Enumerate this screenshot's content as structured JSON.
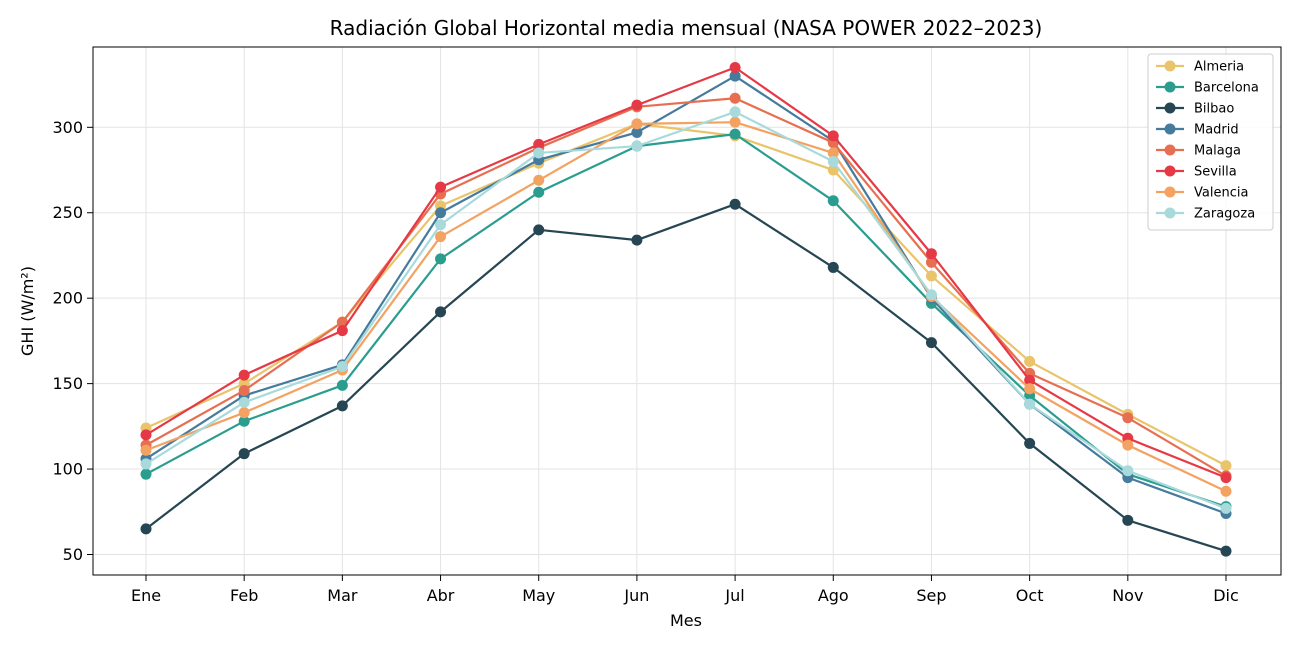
{
  "chart_data": {
    "type": "line",
    "title": "Radiación Global Horizontal media mensual (NASA POWER 2022–2023)",
    "xlabel": "Mes",
    "ylabel": "GHI (W/m²)",
    "categories": [
      "Ene",
      "Feb",
      "Mar",
      "Abr",
      "May",
      "Jun",
      "Jul",
      "Ago",
      "Sep",
      "Oct",
      "Nov",
      "Dic"
    ],
    "ylim": [
      38,
      347
    ],
    "yticks": [
      50,
      100,
      150,
      200,
      250,
      300
    ],
    "grid": true,
    "legend_position": "top-right",
    "series": [
      {
        "name": "Almeria",
        "color": "#e9c46a",
        "values": [
          124,
          150,
          186,
          254,
          279,
          302,
          295,
          275,
          213,
          163,
          132,
          102
        ]
      },
      {
        "name": "Barcelona",
        "color": "#2a9d8f",
        "values": [
          97,
          128,
          149,
          223,
          262,
          289,
          296,
          257,
          197,
          143,
          97,
          78
        ]
      },
      {
        "name": "Bilbao",
        "color": "#264653",
        "values": [
          65,
          109,
          137,
          192,
          240,
          234,
          255,
          218,
          174,
          115,
          70,
          52
        ]
      },
      {
        "name": "Madrid",
        "color": "#457b9d",
        "values": [
          106,
          143,
          161,
          250,
          281,
          297,
          330,
          292,
          200,
          138,
          95,
          74
        ]
      },
      {
        "name": "Malaga",
        "color": "#e76f51",
        "values": [
          114,
          146,
          186,
          261,
          288,
          312,
          317,
          291,
          221,
          156,
          130,
          96
        ]
      },
      {
        "name": "Sevilla",
        "color": "#e63946",
        "values": [
          120,
          155,
          181,
          265,
          290,
          313,
          335,
          295,
          226,
          152,
          118,
          95
        ]
      },
      {
        "name": "Valencia",
        "color": "#f4a261",
        "values": [
          111,
          133,
          158,
          236,
          269,
          302,
          303,
          285,
          201,
          147,
          114,
          87
        ]
      },
      {
        "name": "Zaragoza",
        "color": "#a8dadc",
        "values": [
          103,
          139,
          160,
          243,
          285,
          289,
          309,
          280,
          202,
          138,
          99,
          77
        ]
      }
    ]
  }
}
